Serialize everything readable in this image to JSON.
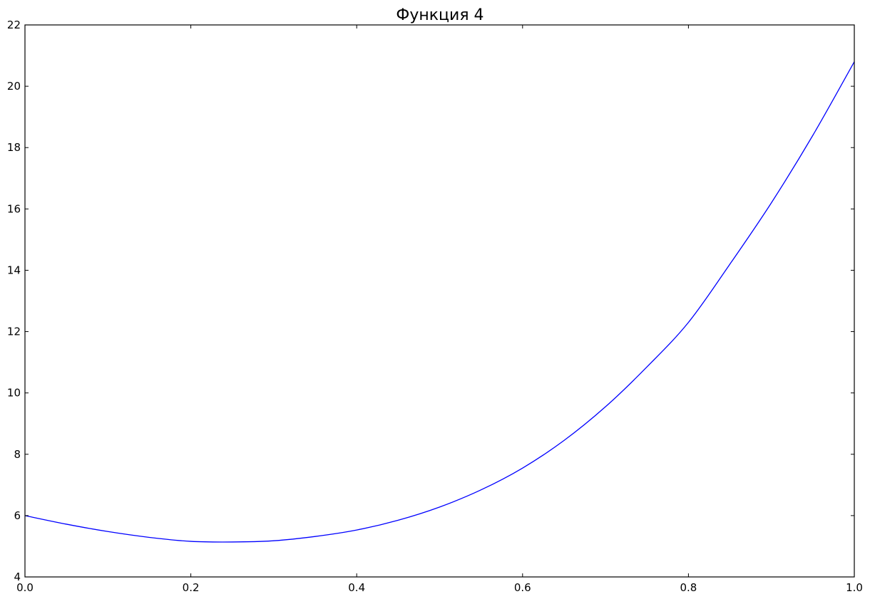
{
  "chart_data": {
    "type": "line",
    "title": "Функция 4",
    "xlabel": "",
    "ylabel": "",
    "xlim": [
      0.0,
      1.0
    ],
    "ylim": [
      4,
      22
    ],
    "xticks": [
      0.0,
      0.2,
      0.4,
      0.6,
      0.8,
      1.0
    ],
    "xtick_labels": [
      "0.0",
      "0.2",
      "0.4",
      "0.6",
      "0.8",
      "1.0"
    ],
    "yticks": [
      4,
      6,
      8,
      10,
      12,
      14,
      16,
      18,
      20,
      22
    ],
    "ytick_labels": [
      "4",
      "6",
      "8",
      "10",
      "12",
      "14",
      "16",
      "18",
      "20",
      "22"
    ],
    "grid": false,
    "series": [
      {
        "color": "#0000ff",
        "x": [
          0.0,
          0.05,
          0.1,
          0.15,
          0.2,
          0.25,
          0.3,
          0.35,
          0.4,
          0.45,
          0.5,
          0.55,
          0.6,
          0.65,
          0.7,
          0.75,
          0.8,
          0.85,
          0.9,
          0.95,
          1.0
        ],
        "y": [
          6.0,
          5.72,
          5.48,
          5.29,
          5.16,
          5.14,
          5.18,
          5.32,
          5.53,
          5.85,
          6.28,
          6.84,
          7.55,
          8.45,
          9.55,
          10.85,
          12.3,
          14.2,
          16.2,
          18.4,
          20.8
        ]
      }
    ]
  }
}
